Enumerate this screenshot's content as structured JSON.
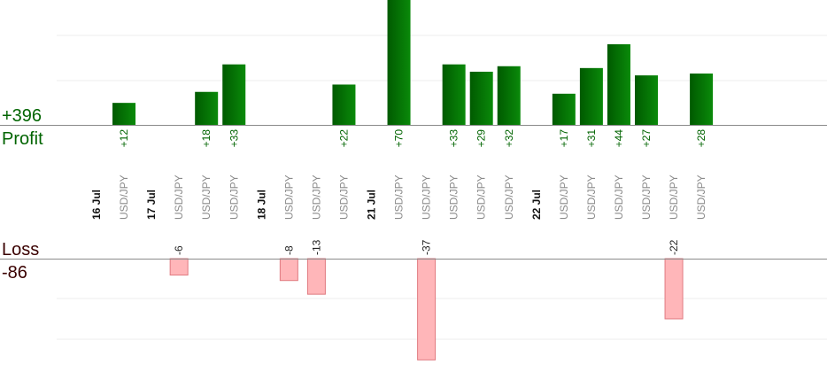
{
  "summary": {
    "profit_total": "+396",
    "profit_label": "Profit",
    "loss_label": "Loss",
    "loss_total": "-86"
  },
  "colors": {
    "profit_text": "#006400",
    "loss_text": "#3a0000",
    "profit_bar_dark": "#005a00",
    "profit_bar_light": "#0a8a0a",
    "loss_bar_fill": "#ffb6b9",
    "loss_bar_stroke": "#e07a80",
    "date_text": "#111111",
    "pair_text": "#8a8a8a",
    "grid": "#ececec",
    "axis": "#8a8a8a"
  },
  "chart_data": {
    "type": "bar",
    "columns": [
      {
        "label": "16 Jul",
        "kind": "date"
      },
      {
        "label": "USD/JPY",
        "kind": "pair",
        "profit": 12,
        "profit_label": "+12"
      },
      {
        "label": "17 Jul",
        "kind": "date"
      },
      {
        "label": "USD/JPY",
        "kind": "pair",
        "loss": 6,
        "loss_label": "-6"
      },
      {
        "label": "USD/JPY",
        "kind": "pair",
        "profit": 18,
        "profit_label": "+18"
      },
      {
        "label": "USD/JPY",
        "kind": "pair",
        "profit": 33,
        "profit_label": "+33"
      },
      {
        "label": "18 Jul",
        "kind": "date"
      },
      {
        "label": "USD/JPY",
        "kind": "pair",
        "loss": 8,
        "loss_label": "-8"
      },
      {
        "label": "USD/JPY",
        "kind": "pair",
        "loss": 13,
        "loss_label": "-13"
      },
      {
        "label": "USD/JPY",
        "kind": "pair",
        "profit": 22,
        "profit_label": "+22"
      },
      {
        "label": "21 Jul",
        "kind": "date"
      },
      {
        "label": "USD/JPY",
        "kind": "pair",
        "profit": 70,
        "profit_label": "+70"
      },
      {
        "label": "USD/JPY",
        "kind": "pair",
        "loss": 37,
        "loss_label": "-37"
      },
      {
        "label": "USD/JPY",
        "kind": "pair",
        "profit": 33,
        "profit_label": "+33"
      },
      {
        "label": "USD/JPY",
        "kind": "pair",
        "profit": 29,
        "profit_label": "+29"
      },
      {
        "label": "USD/JPY",
        "kind": "pair",
        "profit": 32,
        "profit_label": "+32"
      },
      {
        "label": "22 Jul",
        "kind": "date"
      },
      {
        "label": "USD/JPY",
        "kind": "pair",
        "profit": 17,
        "profit_label": "+17"
      },
      {
        "label": "USD/JPY",
        "kind": "pair",
        "profit": 31,
        "profit_label": "+31"
      },
      {
        "label": "USD/JPY",
        "kind": "pair",
        "profit": 44,
        "profit_label": "+44"
      },
      {
        "label": "USD/JPY",
        "kind": "pair",
        "profit": 27,
        "profit_label": "+27"
      },
      {
        "label": "USD/JPY",
        "kind": "pair",
        "loss": 22,
        "loss_label": "-22"
      },
      {
        "label": "USD/JPY",
        "kind": "pair",
        "profit": 28,
        "profit_label": "+28"
      }
    ]
  }
}
